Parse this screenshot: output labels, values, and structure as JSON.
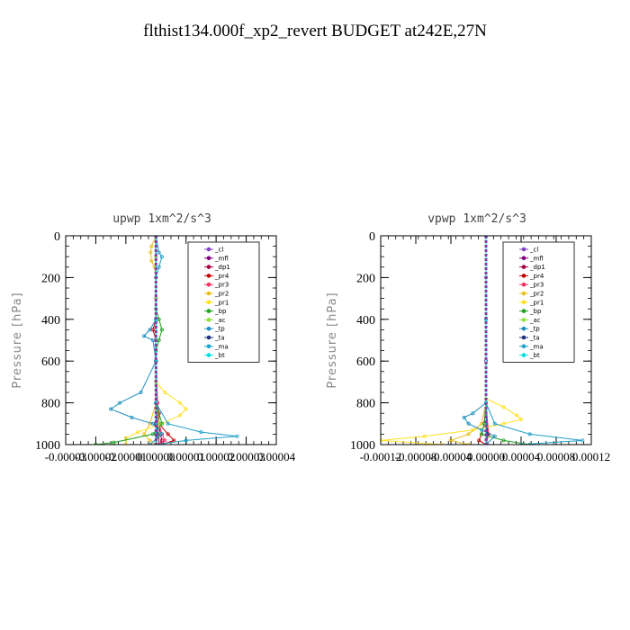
{
  "figure": {
    "title": "flthist134.000f_xp2_revert  BUDGET at242E,27N"
  },
  "chart_data": [
    {
      "type": "line",
      "title": "upwp   1xm^2/s^3",
      "ylabel": "Pressure [hPa]",
      "ylim": [
        1000,
        0
      ],
      "y_ticks": [
        "0",
        "200",
        "400",
        "600",
        "800",
        "1000"
      ],
      "y_tick_values": [
        0,
        200,
        400,
        600,
        800,
        1000
      ],
      "xlim": [
        -3e-05,
        4e-05
      ],
      "x_ticks": [
        "-0.00003",
        "-0.00002",
        "-0.00001",
        "0.00000",
        "0.00001",
        "0.00002",
        "0.00003",
        "0.00004"
      ],
      "x_tick_values": [
        -3e-05,
        -2e-05,
        -1e-05,
        0.0,
        1e-05,
        2e-05,
        3e-05,
        4e-05
      ],
      "legend_position": "top-right",
      "legend": [
        "_cl",
        "_mfl",
        "_dp1",
        "_pr4",
        "_pr3",
        "_pr2",
        "_pr1",
        "_bp",
        "_ac",
        "_tp",
        "_ta",
        "_ma",
        "_bt"
      ],
      "series": [
        {
          "name": "_cl",
          "color": "#8040c0",
          "p": [
            0,
            100,
            200,
            300,
            400,
            500,
            600,
            700,
            800,
            900,
            950,
            1000
          ],
          "x": [
            0,
            0,
            0,
            0,
            0,
            0,
            0,
            0,
            0,
            0,
            0,
            0
          ]
        },
        {
          "name": "_mfl",
          "color": "#800080",
          "p": [
            0,
            200,
            400,
            600,
            800,
            900,
            950,
            1000
          ],
          "x": [
            0,
            0,
            0,
            0,
            0,
            5e-07,
            1e-06,
            1e-06
          ]
        },
        {
          "name": "_dp1",
          "color": "#a00040",
          "p": [
            0,
            200,
            400,
            600,
            800,
            850,
            900,
            950,
            980,
            1000
          ],
          "x": [
            0,
            0,
            0,
            0,
            5e-07,
            1e-06,
            1e-06,
            1.5e-06,
            2e-06,
            1e-06
          ]
        },
        {
          "name": "_pr4",
          "color": "#c00000",
          "p": [
            0,
            400,
            450,
            500,
            600,
            800,
            900,
            950,
            980,
            1000
          ],
          "x": [
            0,
            0,
            -1e-06,
            0,
            0,
            0,
            1e-06,
            4e-06,
            6e-06,
            2e-06
          ]
        },
        {
          "name": "_pr3",
          "color": "#ff3060",
          "p": [
            0,
            400,
            600,
            800,
            900,
            950,
            980,
            1000
          ],
          "x": [
            0,
            0,
            0,
            5e-07,
            1e-06,
            2e-06,
            3e-06,
            1e-06
          ]
        },
        {
          "name": "_pr2",
          "color": "#e8c020",
          "p": [
            0,
            50,
            80,
            120,
            150,
            200,
            300,
            500,
            700,
            800,
            900,
            950,
            980,
            1000
          ],
          "x": [
            0,
            -1.5e-06,
            -1.8e-06,
            -1.5e-06,
            -5e-07,
            0,
            0,
            0,
            0,
            0,
            -2e-06,
            -4e-06,
            -2e-06,
            0
          ]
        },
        {
          "name": "_pr1",
          "color": "#ffe020",
          "p": [
            0,
            100,
            200,
            400,
            600,
            700,
            750,
            800,
            830,
            860,
            900,
            940,
            970,
            1000
          ],
          "x": [
            0,
            0,
            0,
            0,
            0,
            0,
            3e-06,
            8e-06,
            1e-05,
            8e-06,
            2e-06,
            -6e-06,
            -1e-05,
            -1e-05
          ]
        },
        {
          "name": "_bp",
          "color": "#20a020",
          "p": [
            0,
            350,
            400,
            450,
            500,
            550,
            600,
            800,
            900,
            950,
            990,
            1000
          ],
          "x": [
            0,
            0,
            1e-06,
            2e-06,
            1e-06,
            0,
            0,
            0,
            2e-06,
            -1e-06,
            -1.4e-05,
            -2e-05
          ]
        },
        {
          "name": "_ac",
          "color": "#90e040",
          "p": [
            0,
            400,
            800,
            900,
            950,
            1000
          ],
          "x": [
            0,
            0,
            0,
            1e-06,
            1e-06,
            0
          ]
        },
        {
          "name": "_tp",
          "color": "#2090c0",
          "p": [
            0,
            400,
            450,
            480,
            500,
            600,
            750,
            800,
            830,
            870,
            900,
            950,
            1000
          ],
          "x": [
            0,
            0,
            -2e-06,
            -4e-06,
            -1e-06,
            0,
            -5e-06,
            -1.2e-05,
            -1.5e-05,
            -8e-06,
            -1e-06,
            2e-06,
            -2e-06
          ]
        },
        {
          "name": "_ta",
          "color": "#203080",
          "p": [
            0,
            400,
            600,
            800,
            900,
            950,
            1000
          ],
          "x": [
            0,
            0,
            0,
            0,
            0,
            5e-07,
            0
          ]
        },
        {
          "name": "_ma",
          "color": "#20a0c8",
          "p": [
            0,
            80,
            100,
            150,
            200,
            400,
            600,
            800,
            900,
            940,
            960,
            980,
            1000
          ],
          "x": [
            0,
            1e-06,
            2e-06,
            1e-06,
            0,
            0,
            0,
            0,
            4e-06,
            1.5e-05,
            2.7e-05,
            1e-05,
            0
          ]
        },
        {
          "name": "_bt",
          "color": "#00e0e0",
          "p": [
            0,
            400,
            800,
            1000
          ],
          "x": [
            0,
            0,
            0,
            0
          ]
        }
      ]
    },
    {
      "type": "line",
      "title": "vpwp   1xm^2/s^3",
      "ylabel": "Pressure [hPa]",
      "ylim": [
        1000,
        0
      ],
      "y_ticks": [
        "0",
        "200",
        "400",
        "600",
        "800",
        "1000"
      ],
      "y_tick_values": [
        0,
        200,
        400,
        600,
        800,
        1000
      ],
      "xlim": [
        -0.00012,
        0.00012
      ],
      "x_ticks": [
        "-0.00012",
        "-0.00008",
        "-0.00004",
        "0.00000",
        "0.00004",
        "0.00008",
        "0.00012"
      ],
      "x_tick_values": [
        -0.00012,
        -8e-05,
        -4e-05,
        0.0,
        4e-05,
        8e-05,
        0.00012
      ],
      "legend_position": "top-right",
      "legend": [
        "_cl",
        "_mfl",
        "_dp1",
        "_pr4",
        "_pr3",
        "_pr2",
        "_pr1",
        "_bp",
        "_ac",
        "_tp",
        "_ta",
        "_ma",
        "_bt"
      ],
      "series": [
        {
          "name": "_cl",
          "color": "#8040c0",
          "p": [
            0,
            200,
            400,
            600,
            800,
            1000
          ],
          "x": [
            0,
            0,
            0,
            0,
            0,
            0
          ]
        },
        {
          "name": "_mfl",
          "color": "#800080",
          "p": [
            0,
            400,
            800,
            950,
            1000
          ],
          "x": [
            0,
            0,
            0,
            1e-06,
            1e-06
          ]
        },
        {
          "name": "_dp1",
          "color": "#a00040",
          "p": [
            0,
            400,
            800,
            950,
            1000
          ],
          "x": [
            0,
            0,
            0,
            2e-06,
            0
          ]
        },
        {
          "name": "_pr4",
          "color": "#c00000",
          "p": [
            0,
            400,
            800,
            900,
            950,
            980,
            1000
          ],
          "x": [
            0,
            0,
            0,
            -2e-06,
            -5e-06,
            -8e-06,
            0
          ]
        },
        {
          "name": "_pr3",
          "color": "#ff3060",
          "p": [
            0,
            400,
            800,
            950,
            1000
          ],
          "x": [
            0,
            0,
            0,
            3e-06,
            0
          ]
        },
        {
          "name": "_pr2",
          "color": "#e8c020",
          "p": [
            0,
            400,
            800,
            900,
            950,
            980,
            1000
          ],
          "x": [
            0,
            0,
            0,
            -5e-06,
            -2e-05,
            -4e-05,
            -2e-05
          ]
        },
        {
          "name": "_pr1",
          "color": "#ffe020",
          "p": [
            0,
            400,
            780,
            820,
            860,
            880,
            900,
            930,
            960,
            980,
            1000
          ],
          "x": [
            0,
            0,
            0,
            2e-05,
            3.5e-05,
            4e-05,
            2e-05,
            -1.5e-05,
            -7e-05,
            -0.00012,
            -5e-05
          ]
        },
        {
          "name": "_bp",
          "color": "#20a020",
          "p": [
            0,
            400,
            800,
            900,
            950,
            980,
            1000
          ],
          "x": [
            0,
            0,
            0,
            -2e-06,
            -5e-06,
            2e-05,
            5e-05
          ]
        },
        {
          "name": "_ac",
          "color": "#90e040",
          "p": [
            0,
            400,
            800,
            950,
            1000
          ],
          "x": [
            0,
            0,
            0,
            1e-06,
            0
          ]
        },
        {
          "name": "_tp",
          "color": "#2090c0",
          "p": [
            0,
            400,
            800,
            850,
            870,
            900,
            930,
            960,
            1000
          ],
          "x": [
            0,
            0,
            0,
            -1.5e-05,
            -2.5e-05,
            -2e-05,
            -5e-06,
            1e-05,
            0
          ]
        },
        {
          "name": "_ta",
          "color": "#203080",
          "p": [
            0,
            400,
            800,
            950,
            1000
          ],
          "x": [
            0,
            0,
            0,
            1e-06,
            0
          ]
        },
        {
          "name": "_ma",
          "color": "#20a0c8",
          "p": [
            0,
            400,
            800,
            900,
            950,
            980,
            1000
          ],
          "x": [
            0,
            0,
            0,
            1e-05,
            5e-05,
            0.00011,
            4e-05
          ]
        },
        {
          "name": "_bt",
          "color": "#00e0e0",
          "p": [
            0,
            400,
            800,
            1000
          ],
          "x": [
            0,
            0,
            0,
            0
          ]
        }
      ]
    }
  ]
}
